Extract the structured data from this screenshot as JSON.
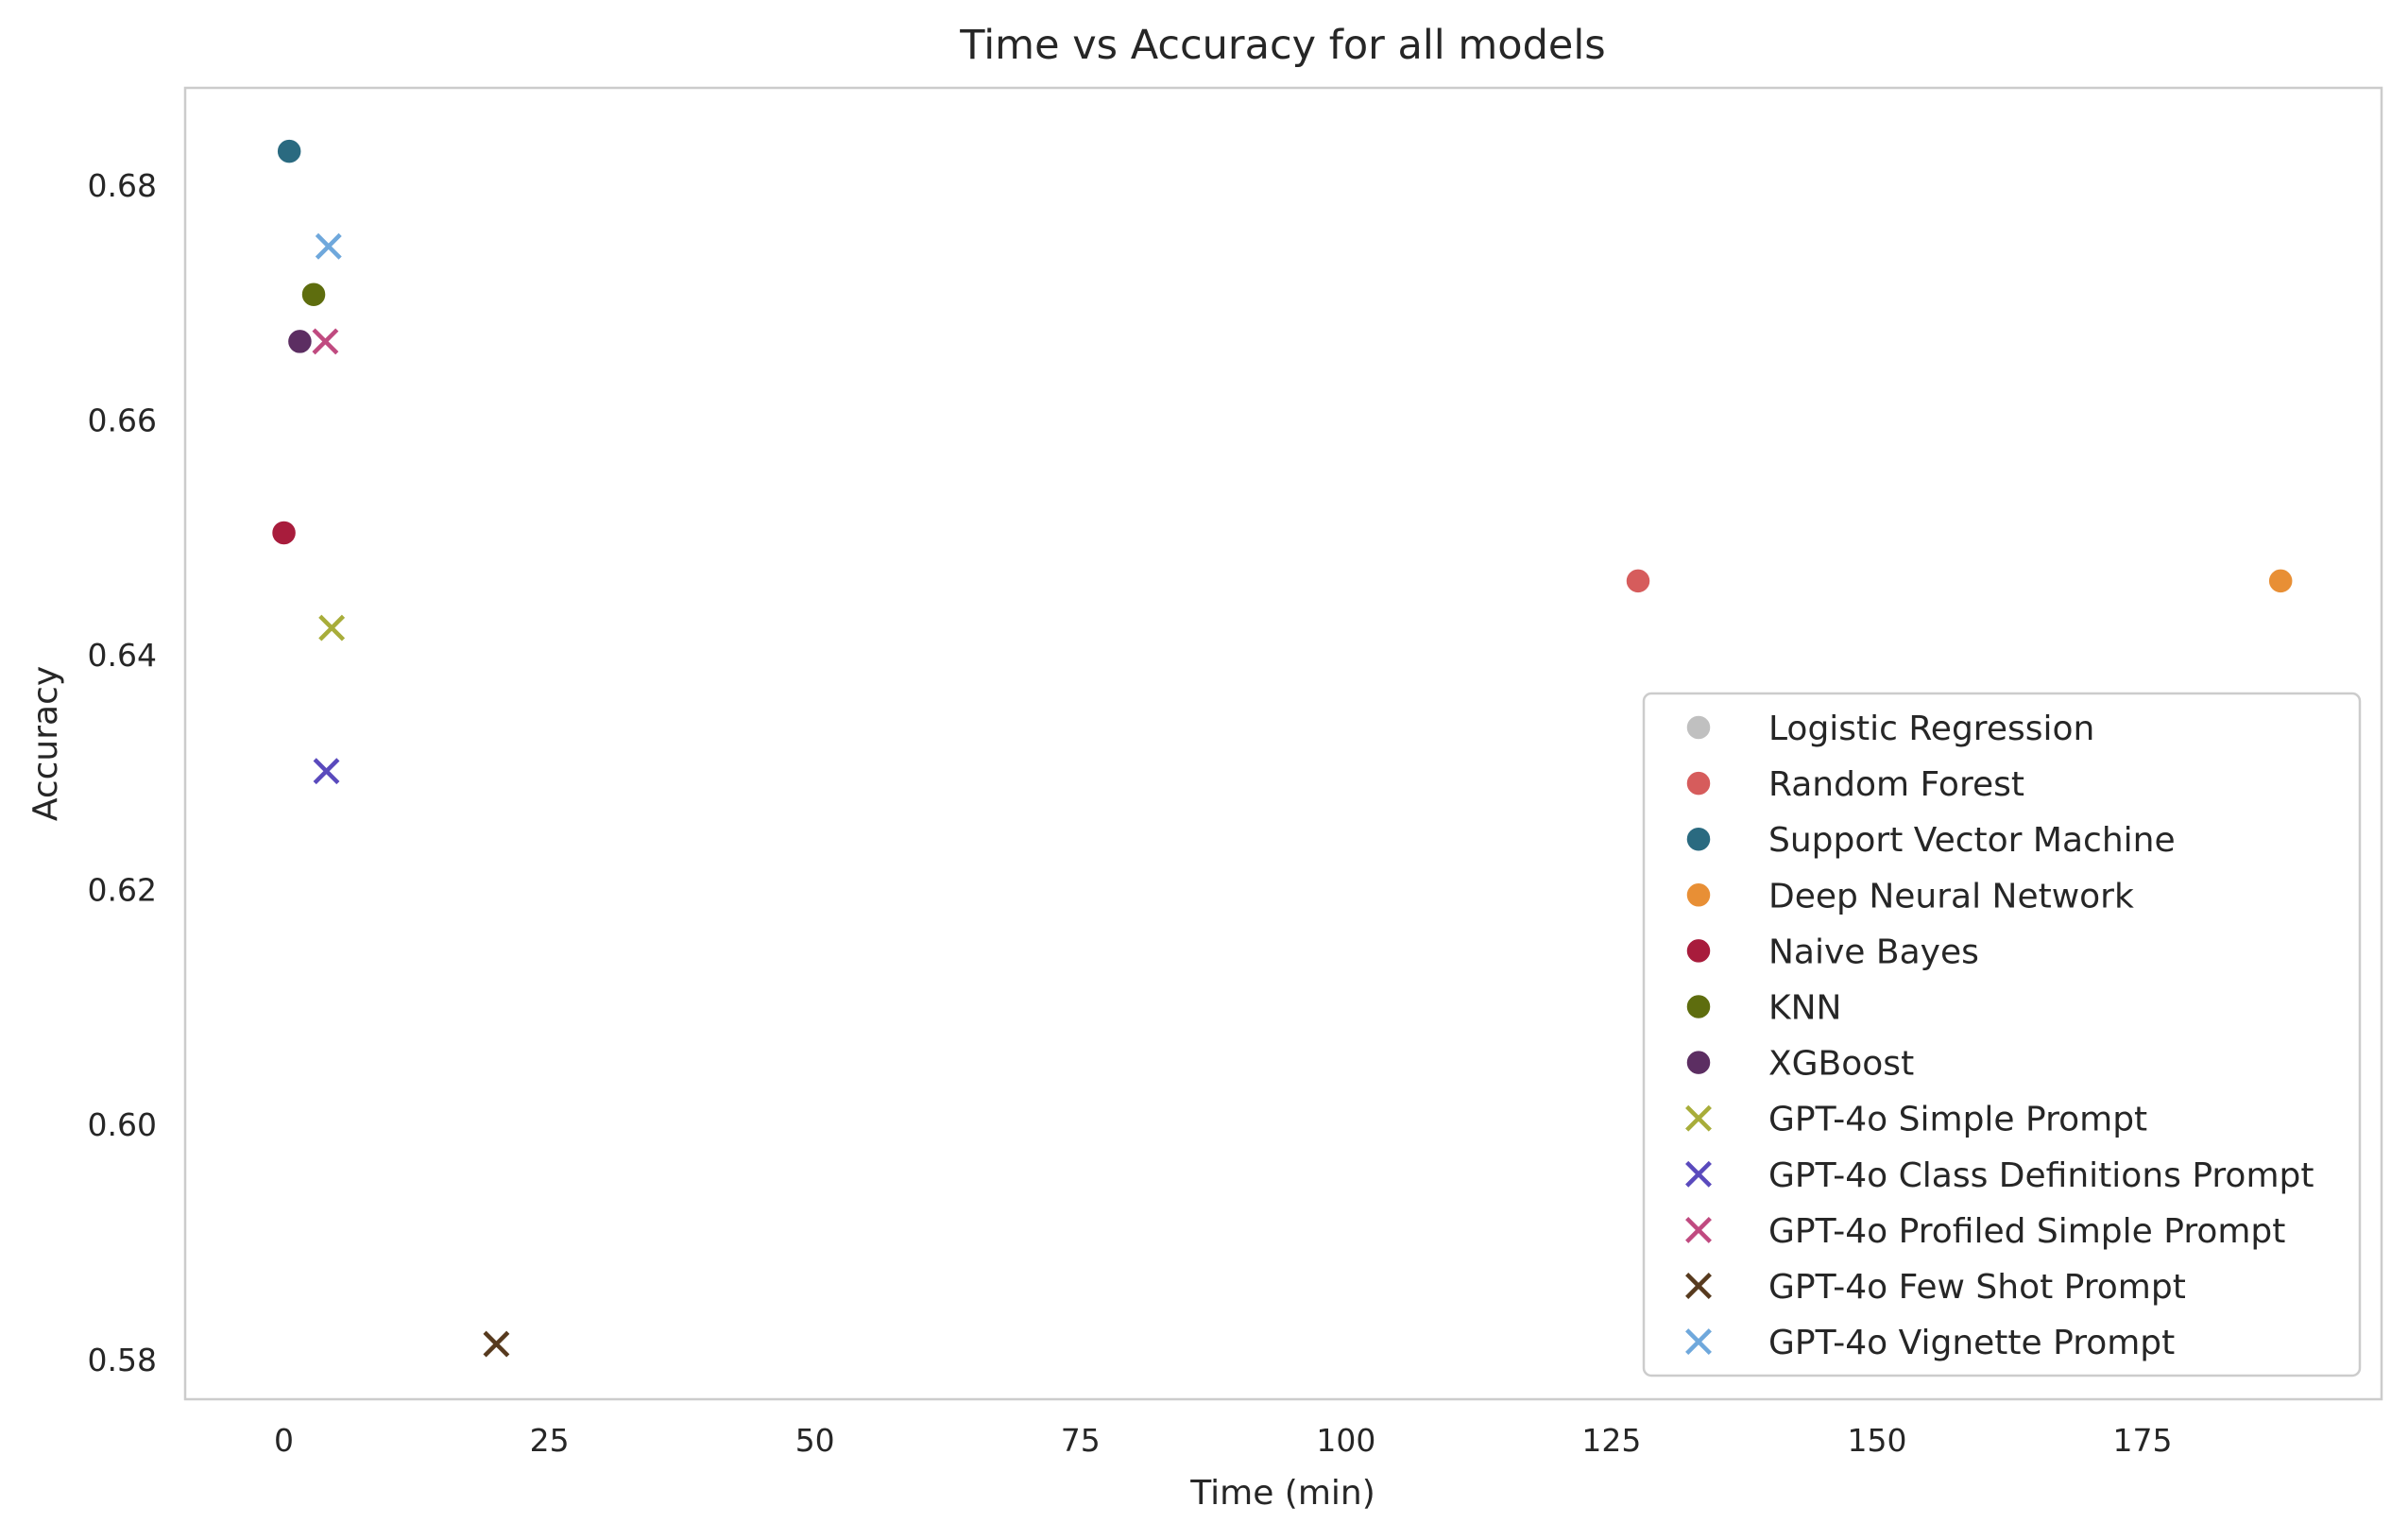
{
  "chart_data": {
    "type": "scatter",
    "title": "Time vs Accuracy for all models",
    "xlabel": "Time (min)",
    "ylabel": "Accuracy",
    "xlim": [
      -9.3,
      197.5
    ],
    "ylim": [
      0.5766,
      0.6883
    ],
    "xticks": [
      0,
      25,
      50,
      75,
      100,
      125,
      150,
      175
    ],
    "yticks": [
      0.58,
      0.6,
      0.62,
      0.64,
      0.66,
      0.68
    ],
    "grid": false,
    "legend_position": "lower-right",
    "series": [
      {
        "name": "Logistic Regression",
        "marker": "circle",
        "color": "#c0c0c0",
        "points": []
      },
      {
        "name": "Random Forest",
        "marker": "circle",
        "color": "#d65c5c",
        "points": [
          {
            "x": 127.5,
            "y": 0.6463
          }
        ]
      },
      {
        "name": "Support Vector Machine",
        "marker": "circle",
        "color": "#2a6a80",
        "points": [
          {
            "x": 0.5,
            "y": 0.6829
          }
        ]
      },
      {
        "name": "Deep Neural Network",
        "marker": "circle",
        "color": "#e88f35",
        "points": [
          {
            "x": 188.0,
            "y": 0.6463
          }
        ]
      },
      {
        "name": "Naive Bayes",
        "marker": "circle",
        "color": "#a81c3c",
        "points": [
          {
            "x": 0.0,
            "y": 0.6504
          }
        ]
      },
      {
        "name": "KNN",
        "marker": "circle",
        "color": "#5e6d0e",
        "points": [
          {
            "x": 2.8,
            "y": 0.6707
          }
        ]
      },
      {
        "name": "XGBoost",
        "marker": "circle",
        "color": "#5c2e62",
        "points": [
          {
            "x": 1.5,
            "y": 0.6667
          }
        ]
      },
      {
        "name": "GPT-4o Simple Prompt",
        "marker": "x",
        "color": "#a8ad3a",
        "points": [
          {
            "x": 4.5,
            "y": 0.6423
          }
        ]
      },
      {
        "name": "GPT-4o Class Definitions Prompt",
        "marker": "x",
        "color": "#5a4abd",
        "points": [
          {
            "x": 4.0,
            "y": 0.6301
          }
        ]
      },
      {
        "name": "GPT-4o Profiled Simple Prompt",
        "marker": "x",
        "color": "#c04a80",
        "points": [
          {
            "x": 3.9,
            "y": 0.6667
          }
        ]
      },
      {
        "name": "GPT-4o Few Shot Prompt",
        "marker": "x",
        "color": "#573a1e",
        "points": [
          {
            "x": 20.0,
            "y": 0.5813
          }
        ]
      },
      {
        "name": "GPT-4o Vignette Prompt",
        "marker": "x",
        "color": "#6fa8dc",
        "points": [
          {
            "x": 4.2,
            "y": 0.6748
          }
        ]
      }
    ]
  }
}
